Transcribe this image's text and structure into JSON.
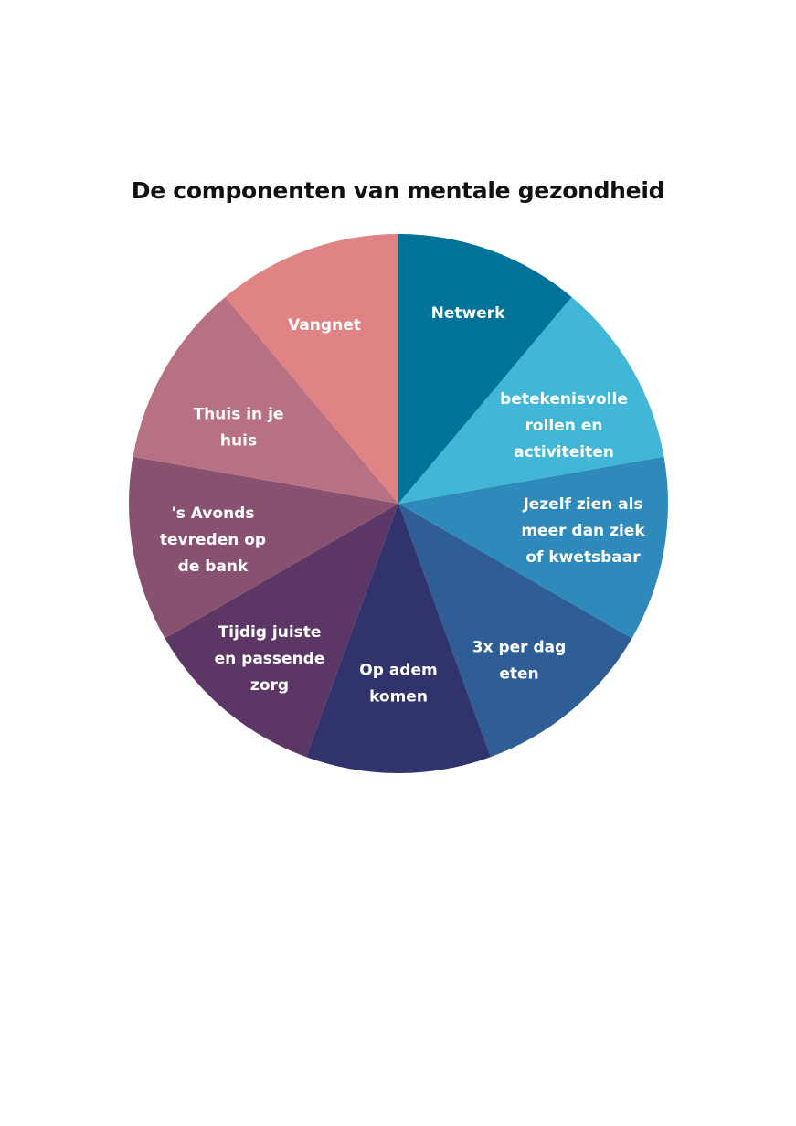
{
  "chart_data": {
    "type": "pie",
    "title": "De componenten van mentale gezondheid",
    "start": "top",
    "direction": "clockwise",
    "slices": [
      {
        "label": "Netwerk",
        "lines": [
          "Netwerk"
        ],
        "value": 1,
        "color": "#017398"
      },
      {
        "label": "betekenisvolle rollen en activiteiten",
        "lines": [
          "betekenisvolle",
          "rollen en",
          "activiteiten"
        ],
        "value": 1,
        "color": "#41b6d6"
      },
      {
        "label": "Jezelf zien als meer dan ziek of kwetsbaar",
        "lines": [
          "Jezelf zien als",
          "meer dan ziek",
          "of kwetsbaar"
        ],
        "value": 1,
        "color": "#2e8aba"
      },
      {
        "label": "3x per dag eten",
        "lines": [
          "3x per dag",
          "eten"
        ],
        "value": 1,
        "color": "#2f5e97"
      },
      {
        "label": "Op adem komen",
        "lines": [
          "Op adem",
          "komen"
        ],
        "value": 1,
        "color": "#30336c"
      },
      {
        "label": "Tijdig juiste en passende zorg",
        "lines": [
          "Tijdig juiste",
          "en passende",
          "zorg"
        ],
        "value": 1,
        "color": "#5c3766"
      },
      {
        "label": "'s Avonds tevreden op de bank",
        "lines": [
          "'s Avonds",
          "tevreden op",
          "de bank"
        ],
        "value": 1,
        "color": "#88516f"
      },
      {
        "label": "Thuis in je huis",
        "lines": [
          "Thuis in je",
          "huis"
        ],
        "value": 1,
        "color": "#b77182"
      },
      {
        "label": "Vangnet",
        "lines": [
          "Vangnet"
        ],
        "value": 1,
        "color": "#e08385"
      }
    ]
  }
}
